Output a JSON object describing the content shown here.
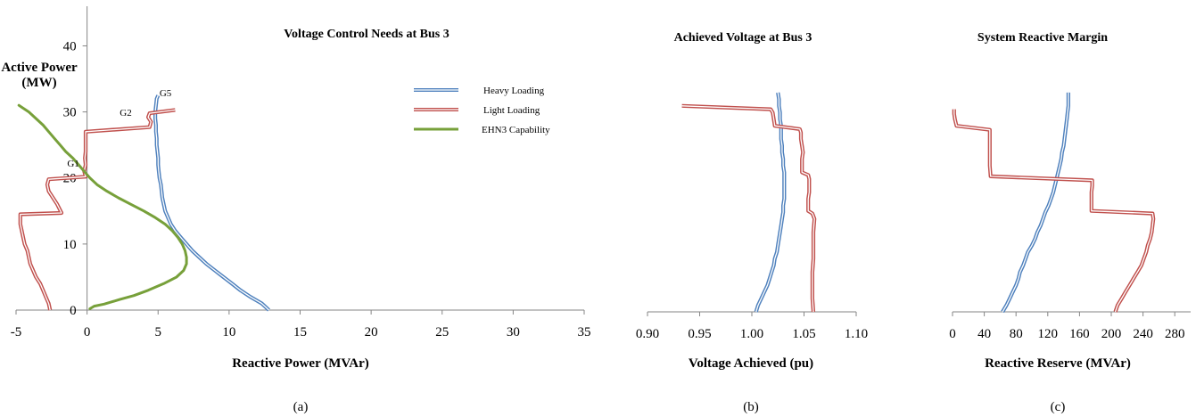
{
  "chart_data": [
    {
      "type": "line",
      "panel": "a",
      "title": "Voltage Control Needs at Bus 3",
      "xlabel": "Reactive Power (MVAr)",
      "ylabel_line1": "Active Power",
      "ylabel_line2": "(MW)",
      "caption": "(a)",
      "xlim": [
        -5,
        35
      ],
      "ylim": [
        0,
        46
      ],
      "xticks": [
        "-5",
        "0",
        "5",
        "10",
        "15",
        "20",
        "25",
        "30",
        "35"
      ],
      "yticks": [
        "0",
        "10",
        "20",
        "30",
        "40"
      ],
      "legend": [
        "Heavy Loading",
        "Light Loading",
        "EHN3 Capability"
      ],
      "annotations": [
        {
          "text": "G5",
          "x": 5.1,
          "y": 32.4
        },
        {
          "text": "G2",
          "x": 2.3,
          "y": 29.4
        },
        {
          "text": "G1",
          "x": -1.4,
          "y": 21.7
        }
      ],
      "series": [
        {
          "name": "Heavy Loading",
          "color": "#4f81bd",
          "style": "double",
          "points": [
            [
              12.8,
              0
            ],
            [
              12.3,
              1
            ],
            [
              11.5,
              2
            ],
            [
              10.8,
              3
            ],
            [
              10.2,
              4
            ],
            [
              9.6,
              5
            ],
            [
              9.0,
              6
            ],
            [
              8.4,
              7
            ],
            [
              7.9,
              8
            ],
            [
              7.4,
              9
            ],
            [
              7.0,
              10
            ],
            [
              6.6,
              11
            ],
            [
              6.2,
              12
            ],
            [
              5.9,
              13
            ],
            [
              5.7,
              14
            ],
            [
              5.5,
              15
            ],
            [
              5.4,
              16
            ],
            [
              5.3,
              17
            ],
            [
              5.25,
              18
            ],
            [
              5.2,
              19
            ],
            [
              5.1,
              20
            ],
            [
              5.05,
              21
            ],
            [
              5.0,
              22
            ],
            [
              5.0,
              23
            ],
            [
              4.95,
              24
            ],
            [
              4.9,
              25
            ],
            [
              4.9,
              26
            ],
            [
              4.85,
              27
            ],
            [
              4.85,
              28
            ],
            [
              4.8,
              29
            ],
            [
              4.8,
              30
            ],
            [
              4.85,
              31
            ],
            [
              4.9,
              32
            ],
            [
              5.0,
              32.5
            ]
          ]
        },
        {
          "name": "Light Loading",
          "color": "#c0504d",
          "style": "double",
          "points": [
            [
              -2.6,
              0
            ],
            [
              -2.7,
              1
            ],
            [
              -2.9,
              2
            ],
            [
              -3.1,
              3
            ],
            [
              -3.3,
              4
            ],
            [
              -3.6,
              5
            ],
            [
              -3.8,
              6
            ],
            [
              -4.0,
              7
            ],
            [
              -4.1,
              8
            ],
            [
              -4.2,
              9
            ],
            [
              -4.4,
              10
            ],
            [
              -4.5,
              11
            ],
            [
              -4.6,
              12
            ],
            [
              -4.7,
              13
            ],
            [
              -4.7,
              14.5
            ],
            [
              -1.8,
              14.7
            ],
            [
              -2.1,
              16
            ],
            [
              -2.4,
              17
            ],
            [
              -2.7,
              18
            ],
            [
              -2.8,
              19
            ],
            [
              -2.7,
              19.8
            ],
            [
              -0.1,
              20.2
            ],
            [
              -0.2,
              21
            ],
            [
              -0.1,
              22
            ],
            [
              -0.15,
              23
            ],
            [
              -0.1,
              24
            ],
            [
              -0.1,
              25
            ],
            [
              -0.1,
              26
            ],
            [
              -0.1,
              27
            ],
            [
              4.4,
              27.7
            ],
            [
              4.5,
              28.5
            ],
            [
              4.3,
              29.2
            ],
            [
              4.4,
              29.8
            ],
            [
              6.2,
              30.3
            ]
          ]
        },
        {
          "name": "EHN3 Capability",
          "color": "#77a03a",
          "style": "solid",
          "points": [
            [
              0.2,
              0.2
            ],
            [
              0.5,
              0.6
            ],
            [
              1.2,
              0.9
            ],
            [
              2.3,
              1.6
            ],
            [
              3.3,
              2.2
            ],
            [
              4.3,
              3
            ],
            [
              5.4,
              4
            ],
            [
              6.3,
              5
            ],
            [
              6.8,
              6
            ],
            [
              7.0,
              7
            ],
            [
              7.0,
              8
            ],
            [
              6.9,
              9
            ],
            [
              6.7,
              10
            ],
            [
              6.4,
              11
            ],
            [
              6.0,
              12
            ],
            [
              5.5,
              13
            ],
            [
              4.8,
              14
            ],
            [
              4.0,
              15
            ],
            [
              3.1,
              16
            ],
            [
              2.2,
              17
            ],
            [
              1.4,
              18
            ],
            [
              0.7,
              19
            ],
            [
              0.2,
              20
            ],
            [
              -0.2,
              21
            ],
            [
              -0.6,
              22
            ],
            [
              -1.0,
              23
            ],
            [
              -1.5,
              24
            ],
            [
              -1.9,
              25
            ],
            [
              -2.3,
              26
            ],
            [
              -2.7,
              27
            ],
            [
              -3.1,
              28
            ],
            [
              -3.6,
              29
            ],
            [
              -4.1,
              30
            ],
            [
              -4.6,
              30.7
            ],
            [
              -4.8,
              31
            ]
          ]
        }
      ]
    },
    {
      "type": "line",
      "panel": "b",
      "title": "Achieved Voltage at Bus 3",
      "xlabel": "Voltage Achieved (pu)",
      "caption": "(b)",
      "xlim": [
        0.9,
        1.1
      ],
      "ylim": [
        0,
        46
      ],
      "xticks": [
        "0.90",
        "0.95",
        "1.00",
        "1.05",
        "1.10"
      ],
      "series": [
        {
          "name": "Heavy Loading",
          "color": "#4f81bd",
          "style": "double",
          "points": [
            [
              1.004,
              0
            ],
            [
              1.006,
              1
            ],
            [
              1.009,
              2
            ],
            [
              1.012,
              3
            ],
            [
              1.015,
              4
            ],
            [
              1.017,
              5
            ],
            [
              1.019,
              6
            ],
            [
              1.021,
              7
            ],
            [
              1.022,
              8
            ],
            [
              1.024,
              9
            ],
            [
              1.025,
              10
            ],
            [
              1.026,
              11
            ],
            [
              1.027,
              12
            ],
            [
              1.028,
              13
            ],
            [
              1.029,
              14
            ],
            [
              1.03,
              15
            ],
            [
              1.03,
              16
            ],
            [
              1.031,
              17
            ],
            [
              1.031,
              18
            ],
            [
              1.031,
              19
            ],
            [
              1.031,
              20
            ],
            [
              1.031,
              21
            ],
            [
              1.03,
              22
            ],
            [
              1.03,
              23
            ],
            [
              1.029,
              24
            ],
            [
              1.029,
              25
            ],
            [
              1.028,
              26
            ],
            [
              1.028,
              27
            ],
            [
              1.028,
              28
            ],
            [
              1.027,
              29
            ],
            [
              1.027,
              30
            ],
            [
              1.026,
              31
            ],
            [
              1.026,
              32
            ],
            [
              1.025,
              33
            ]
          ]
        },
        {
          "name": "Light Loading",
          "color": "#c0504d",
          "style": "double",
          "points": [
            [
              1.059,
              0
            ],
            [
              1.058,
              2
            ],
            [
              1.058,
              4
            ],
            [
              1.058,
              6
            ],
            [
              1.059,
              8
            ],
            [
              1.059,
              10
            ],
            [
              1.059,
              12
            ],
            [
              1.06,
              14
            ],
            [
              1.058,
              14.8
            ],
            [
              1.054,
              15.2
            ],
            [
              1.054,
              17
            ],
            [
              1.055,
              18
            ],
            [
              1.055,
              19
            ],
            [
              1.055,
              20
            ],
            [
              1.054,
              20.6
            ],
            [
              1.048,
              21
            ],
            [
              1.048,
              23
            ],
            [
              1.049,
              24
            ],
            [
              1.048,
              25
            ],
            [
              1.047,
              26
            ],
            [
              1.047,
              27
            ],
            [
              1.046,
              27.5
            ],
            [
              1.022,
              28
            ],
            [
              1.021,
              29
            ],
            [
              1.02,
              30
            ],
            [
              1.018,
              30.5
            ],
            [
              0.933,
              31
            ]
          ]
        }
      ]
    },
    {
      "type": "line",
      "panel": "c",
      "title": "System Reactive Margin",
      "xlabel": "Reactive Reserve (MVAr)",
      "caption": "(c)",
      "xlim": [
        0,
        300
      ],
      "ylim": [
        0,
        46
      ],
      "xticks": [
        "0",
        "40",
        "80",
        "120",
        "160",
        "200",
        "240",
        "280"
      ],
      "series": [
        {
          "name": "Heavy Loading",
          "color": "#4f81bd",
          "style": "double",
          "points": [
            [
              63,
              0
            ],
            [
              68,
              1
            ],
            [
              72,
              2
            ],
            [
              76,
              3
            ],
            [
              80,
              4
            ],
            [
              83,
              5
            ],
            [
              85,
              6
            ],
            [
              89,
              7
            ],
            [
              92,
              8
            ],
            [
              95,
              9
            ],
            [
              100,
              10
            ],
            [
              104,
              11
            ],
            [
              107,
              12
            ],
            [
              111,
              13
            ],
            [
              114,
              14
            ],
            [
              117,
              15
            ],
            [
              121,
              16
            ],
            [
              124,
              17
            ],
            [
              127,
              18
            ],
            [
              129,
              19
            ],
            [
              131,
              20
            ],
            [
              133,
              21
            ],
            [
              135,
              22
            ],
            [
              137,
              23
            ],
            [
              138,
              24
            ],
            [
              140,
              25
            ],
            [
              141,
              26
            ],
            [
              142,
              27
            ],
            [
              143,
              28
            ],
            [
              144,
              29
            ],
            [
              145,
              30
            ],
            [
              146,
              31
            ],
            [
              146,
              32
            ],
            [
              146,
              33
            ]
          ]
        },
        {
          "name": "Light Loading",
          "color": "#c0504d",
          "style": "double",
          "points": [
            [
              205,
              0
            ],
            [
              208,
              1
            ],
            [
              213,
              2
            ],
            [
              218,
              3
            ],
            [
              223,
              4
            ],
            [
              228,
              5
            ],
            [
              233,
              6
            ],
            [
              238,
              7
            ],
            [
              241,
              8
            ],
            [
              244,
              9
            ],
            [
              246,
              10
            ],
            [
              249,
              11
            ],
            [
              251,
              12
            ],
            [
              252,
              13
            ],
            [
              253,
              14
            ],
            [
              252,
              14.8
            ],
            [
              175,
              15.2
            ],
            [
              175,
              17
            ],
            [
              175,
              18
            ],
            [
              176,
              19
            ],
            [
              176,
              19.8
            ],
            [
              48,
              20.4
            ],
            [
              47,
              22
            ],
            [
              47,
              23
            ],
            [
              47,
              24
            ],
            [
              47,
              25
            ],
            [
              47,
              26
            ],
            [
              47,
              27.4
            ],
            [
              5,
              28
            ],
            [
              3,
              29
            ],
            [
              2,
              29.8
            ],
            [
              2,
              30.5
            ]
          ]
        }
      ]
    }
  ]
}
